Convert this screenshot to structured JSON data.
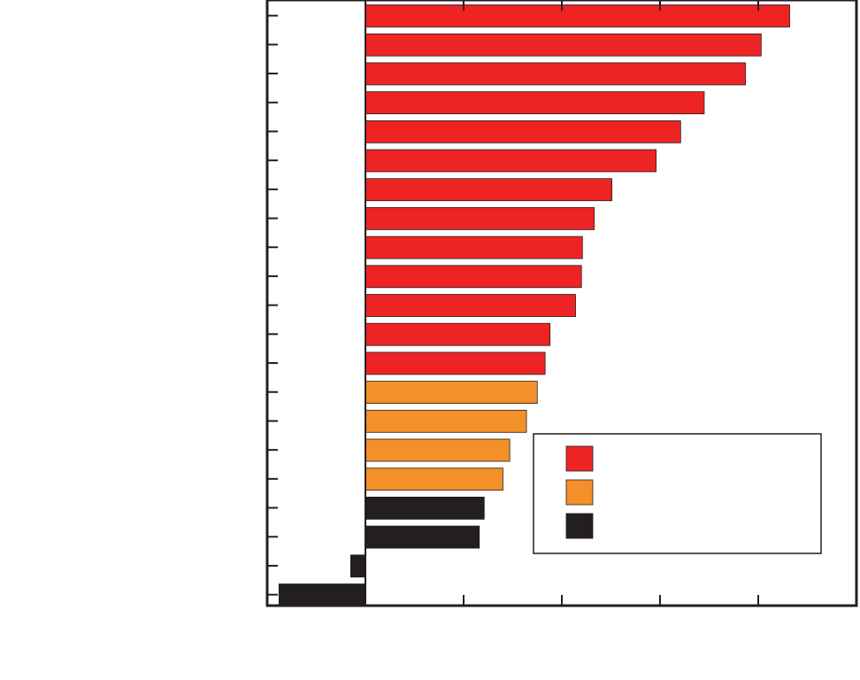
{
  "chart_data": {
    "type": "bar",
    "orientation": "horizontal",
    "title": "",
    "xlabel": "",
    "ylabel": "",
    "categories": [
      "",
      "",
      "",
      "",
      "",
      "",
      "",
      "",
      "",
      "",
      "",
      "",
      "",
      "",
      "",
      "",
      "",
      "",
      "",
      "",
      ""
    ],
    "values": [
      4.32,
      4.03,
      3.87,
      3.45,
      3.21,
      2.96,
      2.51,
      2.33,
      2.21,
      2.2,
      2.14,
      1.88,
      1.83,
      1.75,
      1.64,
      1.47,
      1.4,
      1.21,
      1.16,
      -0.15,
      -0.88
    ],
    "color_groups": [
      "red",
      "red",
      "red",
      "red",
      "red",
      "red",
      "red",
      "red",
      "red",
      "red",
      "red",
      "red",
      "red",
      "orange",
      "orange",
      "orange",
      "orange",
      "black",
      "black",
      "black",
      "black"
    ],
    "xlim": [
      -1.0,
      5.0
    ],
    "xticks": [
      -1,
      0,
      1,
      2,
      3,
      4,
      5
    ],
    "grid": false,
    "legend_position": "lower-right",
    "legend": [
      {
        "label": "",
        "color": "#ee2424"
      },
      {
        "label": "",
        "color": "#f39029"
      },
      {
        "label": "",
        "color": "#231f20"
      }
    ],
    "colors": {
      "red": "#ee2424",
      "orange": "#f39029",
      "black": "#231f20",
      "axis": "#231f20"
    }
  }
}
